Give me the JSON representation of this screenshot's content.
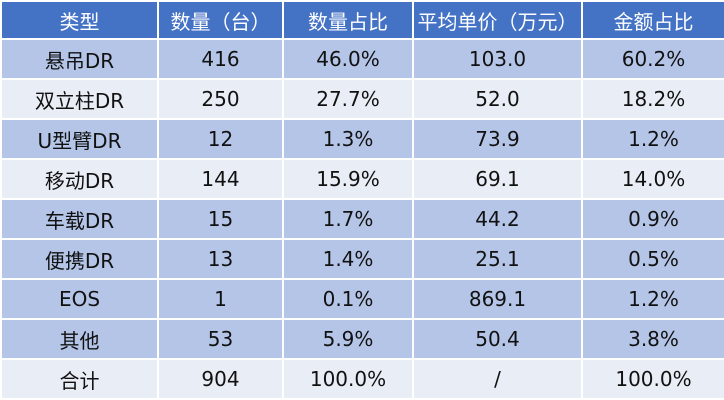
{
  "colors": {
    "header": "#4472C4",
    "row_dark": "#B4C5E8",
    "row_light": "#E9EDF6"
  },
  "headers": [
    "类型",
    "数量（台）",
    "数量占比",
    "平均单价（万元）",
    "金额占比"
  ],
  "rows": [
    {
      "shade": "dark",
      "cells": [
        "悬吊DR",
        "416",
        "46.0%",
        "103.0",
        "60.2%"
      ]
    },
    {
      "shade": "light",
      "cells": [
        "双立柱DR",
        "250",
        "27.7%",
        "52.0",
        "18.2%"
      ]
    },
    {
      "shade": "dark",
      "cells": [
        "U型臂DR",
        "12",
        "1.3%",
        "73.9",
        "1.2%"
      ]
    },
    {
      "shade": "light",
      "cells": [
        "移动DR",
        "144",
        "15.9%",
        "69.1",
        "14.0%"
      ]
    },
    {
      "shade": "dark",
      "cells": [
        "车载DR",
        "15",
        "1.7%",
        "44.2",
        "0.9%"
      ]
    },
    {
      "shade": "dark",
      "cells": [
        "便携DR",
        "13",
        "1.4%",
        "25.1",
        "0.5%"
      ]
    },
    {
      "shade": "dark",
      "cells": [
        "EOS",
        "1",
        "0.1%",
        "869.1",
        "1.2%"
      ]
    },
    {
      "shade": "dark",
      "cells": [
        "其他",
        "53",
        "5.9%",
        "50.4",
        "3.8%"
      ]
    },
    {
      "shade": "light",
      "cells": [
        "合计",
        "904",
        "100.0%",
        "/",
        "100.0%"
      ]
    }
  ]
}
